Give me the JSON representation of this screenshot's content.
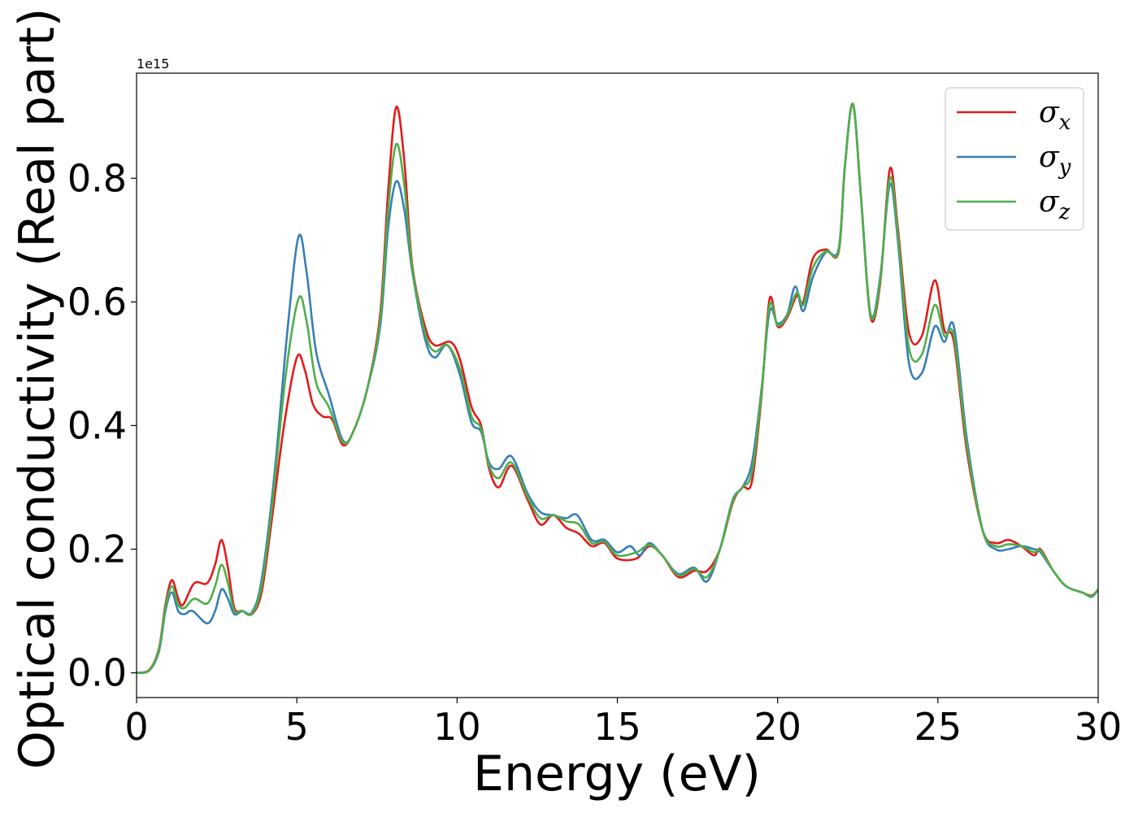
{
  "chart_data": {
    "type": "line",
    "xlabel": "Energy (eV)",
    "ylabel": "Optical conductivity (Real part)",
    "offset_text": "1e15",
    "xlim": [
      0,
      30
    ],
    "ylim": [
      -0.04,
      0.97
    ],
    "xticks": [
      0,
      5,
      10,
      15,
      20,
      25,
      30
    ],
    "xtick_labels": [
      "0",
      "5",
      "10",
      "15",
      "20",
      "25",
      "30"
    ],
    "yticks": [
      0.0,
      0.2,
      0.4,
      0.6,
      0.8
    ],
    "ytick_labels": [
      "0.0",
      "0.2",
      "0.4",
      "0.6",
      "0.8"
    ],
    "grid": false,
    "legend_position": "top-right",
    "series": [
      {
        "name": "σx",
        "symbol": "σ",
        "subscript": "x",
        "color": "#e41a1c",
        "points": [
          [
            0,
            0
          ],
          [
            0.4,
            0.005
          ],
          [
            0.7,
            0.04
          ],
          [
            0.9,
            0.11
          ],
          [
            1.1,
            0.15
          ],
          [
            1.3,
            0.12
          ],
          [
            1.45,
            0.11
          ],
          [
            1.8,
            0.145
          ],
          [
            2.2,
            0.145
          ],
          [
            2.45,
            0.175
          ],
          [
            2.65,
            0.215
          ],
          [
            2.85,
            0.17
          ],
          [
            3.05,
            0.105
          ],
          [
            3.3,
            0.1
          ],
          [
            3.6,
            0.095
          ],
          [
            3.9,
            0.13
          ],
          [
            4.2,
            0.24
          ],
          [
            4.6,
            0.4
          ],
          [
            5.0,
            0.51
          ],
          [
            5.25,
            0.49
          ],
          [
            5.5,
            0.435
          ],
          [
            5.8,
            0.415
          ],
          [
            6.1,
            0.41
          ],
          [
            6.45,
            0.368
          ],
          [
            6.8,
            0.395
          ],
          [
            7.2,
            0.46
          ],
          [
            7.6,
            0.58
          ],
          [
            7.85,
            0.78
          ],
          [
            8.1,
            0.915
          ],
          [
            8.35,
            0.83
          ],
          [
            8.6,
            0.66
          ],
          [
            9.0,
            0.56
          ],
          [
            9.3,
            0.53
          ],
          [
            9.8,
            0.535
          ],
          [
            10.1,
            0.505
          ],
          [
            10.45,
            0.43
          ],
          [
            10.75,
            0.4
          ],
          [
            11.0,
            0.33
          ],
          [
            11.3,
            0.3
          ],
          [
            11.7,
            0.335
          ],
          [
            12.2,
            0.28
          ],
          [
            12.6,
            0.24
          ],
          [
            13.0,
            0.255
          ],
          [
            13.4,
            0.235
          ],
          [
            13.8,
            0.225
          ],
          [
            14.2,
            0.205
          ],
          [
            14.6,
            0.21
          ],
          [
            15.0,
            0.185
          ],
          [
            15.6,
            0.185
          ],
          [
            16.0,
            0.205
          ],
          [
            16.4,
            0.19
          ],
          [
            16.9,
            0.155
          ],
          [
            17.4,
            0.165
          ],
          [
            17.8,
            0.165
          ],
          [
            18.2,
            0.2
          ],
          [
            18.6,
            0.275
          ],
          [
            18.9,
            0.3
          ],
          [
            19.2,
            0.31
          ],
          [
            19.5,
            0.45
          ],
          [
            19.75,
            0.605
          ],
          [
            20.0,
            0.56
          ],
          [
            20.3,
            0.575
          ],
          [
            20.6,
            0.61
          ],
          [
            20.8,
            0.6
          ],
          [
            21.1,
            0.67
          ],
          [
            21.5,
            0.685
          ],
          [
            21.9,
            0.68
          ],
          [
            22.1,
            0.82
          ],
          [
            22.35,
            0.92
          ],
          [
            22.6,
            0.77
          ],
          [
            22.9,
            0.575
          ],
          [
            23.2,
            0.63
          ],
          [
            23.5,
            0.815
          ],
          [
            23.75,
            0.72
          ],
          [
            24.1,
            0.55
          ],
          [
            24.5,
            0.545
          ],
          [
            24.9,
            0.635
          ],
          [
            25.2,
            0.555
          ],
          [
            25.5,
            0.535
          ],
          [
            25.9,
            0.36
          ],
          [
            26.4,
            0.23
          ],
          [
            26.8,
            0.21
          ],
          [
            27.2,
            0.215
          ],
          [
            27.6,
            0.205
          ],
          [
            28.0,
            0.19
          ],
          [
            28.2,
            0.2
          ],
          [
            28.6,
            0.165
          ],
          [
            29.0,
            0.14
          ],
          [
            29.5,
            0.13
          ],
          [
            29.8,
            0.125
          ],
          [
            30,
            0.135
          ]
        ]
      },
      {
        "name": "σy",
        "symbol": "σ",
        "subscript": "y",
        "color": "#377eb8",
        "points": [
          [
            0,
            0
          ],
          [
            0.4,
            0.004
          ],
          [
            0.7,
            0.035
          ],
          [
            0.9,
            0.1
          ],
          [
            1.1,
            0.13
          ],
          [
            1.3,
            0.1
          ],
          [
            1.5,
            0.095
          ],
          [
            1.75,
            0.1
          ],
          [
            2.2,
            0.08
          ],
          [
            2.45,
            0.1
          ],
          [
            2.65,
            0.135
          ],
          [
            2.85,
            0.12
          ],
          [
            3.05,
            0.095
          ],
          [
            3.3,
            0.1
          ],
          [
            3.6,
            0.098
          ],
          [
            3.9,
            0.15
          ],
          [
            4.3,
            0.32
          ],
          [
            4.7,
            0.55
          ],
          [
            5.05,
            0.705
          ],
          [
            5.3,
            0.65
          ],
          [
            5.6,
            0.52
          ],
          [
            6.0,
            0.45
          ],
          [
            6.45,
            0.375
          ],
          [
            6.8,
            0.395
          ],
          [
            7.2,
            0.46
          ],
          [
            7.6,
            0.56
          ],
          [
            7.85,
            0.72
          ],
          [
            8.1,
            0.795
          ],
          [
            8.35,
            0.75
          ],
          [
            8.6,
            0.65
          ],
          [
            9.0,
            0.54
          ],
          [
            9.3,
            0.51
          ],
          [
            9.7,
            0.53
          ],
          [
            10.1,
            0.48
          ],
          [
            10.45,
            0.405
          ],
          [
            10.75,
            0.39
          ],
          [
            11.0,
            0.34
          ],
          [
            11.3,
            0.33
          ],
          [
            11.7,
            0.35
          ],
          [
            12.2,
            0.29
          ],
          [
            12.6,
            0.26
          ],
          [
            13.0,
            0.255
          ],
          [
            13.4,
            0.25
          ],
          [
            13.75,
            0.255
          ],
          [
            14.2,
            0.215
          ],
          [
            14.6,
            0.215
          ],
          [
            15.0,
            0.195
          ],
          [
            15.4,
            0.205
          ],
          [
            15.7,
            0.19
          ],
          [
            16.0,
            0.21
          ],
          [
            16.4,
            0.19
          ],
          [
            16.9,
            0.16
          ],
          [
            17.4,
            0.17
          ],
          [
            17.8,
            0.148
          ],
          [
            18.2,
            0.2
          ],
          [
            18.6,
            0.28
          ],
          [
            18.9,
            0.3
          ],
          [
            19.2,
            0.34
          ],
          [
            19.5,
            0.46
          ],
          [
            19.75,
            0.585
          ],
          [
            20.0,
            0.565
          ],
          [
            20.3,
            0.58
          ],
          [
            20.55,
            0.625
          ],
          [
            20.8,
            0.585
          ],
          [
            21.1,
            0.64
          ],
          [
            21.5,
            0.68
          ],
          [
            21.9,
            0.685
          ],
          [
            22.1,
            0.82
          ],
          [
            22.35,
            0.92
          ],
          [
            22.6,
            0.77
          ],
          [
            22.9,
            0.58
          ],
          [
            23.2,
            0.64
          ],
          [
            23.5,
            0.79
          ],
          [
            23.75,
            0.7
          ],
          [
            24.1,
            0.5
          ],
          [
            24.5,
            0.485
          ],
          [
            24.9,
            0.56
          ],
          [
            25.2,
            0.535
          ],
          [
            25.5,
            0.56
          ],
          [
            25.9,
            0.38
          ],
          [
            26.4,
            0.23
          ],
          [
            26.8,
            0.2
          ],
          [
            27.2,
            0.2
          ],
          [
            27.6,
            0.205
          ],
          [
            28.0,
            0.2
          ],
          [
            28.2,
            0.195
          ],
          [
            28.6,
            0.165
          ],
          [
            29.0,
            0.14
          ],
          [
            29.5,
            0.13
          ],
          [
            29.8,
            0.123
          ],
          [
            30,
            0.135
          ]
        ]
      },
      {
        "name": "σz",
        "symbol": "σ",
        "subscript": "z",
        "color": "#4daf4a",
        "points": [
          [
            0,
            0
          ],
          [
            0.4,
            0.004
          ],
          [
            0.7,
            0.038
          ],
          [
            0.9,
            0.105
          ],
          [
            1.1,
            0.14
          ],
          [
            1.3,
            0.11
          ],
          [
            1.5,
            0.105
          ],
          [
            1.8,
            0.12
          ],
          [
            2.2,
            0.112
          ],
          [
            2.45,
            0.14
          ],
          [
            2.65,
            0.175
          ],
          [
            2.85,
            0.145
          ],
          [
            3.05,
            0.1
          ],
          [
            3.3,
            0.1
          ],
          [
            3.6,
            0.096
          ],
          [
            3.9,
            0.14
          ],
          [
            4.25,
            0.28
          ],
          [
            4.65,
            0.48
          ],
          [
            5.05,
            0.605
          ],
          [
            5.3,
            0.57
          ],
          [
            5.6,
            0.47
          ],
          [
            6.0,
            0.43
          ],
          [
            6.45,
            0.372
          ],
          [
            6.8,
            0.395
          ],
          [
            7.2,
            0.46
          ],
          [
            7.6,
            0.57
          ],
          [
            7.85,
            0.75
          ],
          [
            8.1,
            0.855
          ],
          [
            8.35,
            0.79
          ],
          [
            8.6,
            0.655
          ],
          [
            9.0,
            0.55
          ],
          [
            9.3,
            0.52
          ],
          [
            9.7,
            0.53
          ],
          [
            10.1,
            0.49
          ],
          [
            10.45,
            0.415
          ],
          [
            10.75,
            0.395
          ],
          [
            11.0,
            0.335
          ],
          [
            11.3,
            0.315
          ],
          [
            11.7,
            0.34
          ],
          [
            12.2,
            0.285
          ],
          [
            12.6,
            0.25
          ],
          [
            13.0,
            0.255
          ],
          [
            13.4,
            0.245
          ],
          [
            13.8,
            0.24
          ],
          [
            14.2,
            0.21
          ],
          [
            14.6,
            0.212
          ],
          [
            15.0,
            0.19
          ],
          [
            15.6,
            0.195
          ],
          [
            16.0,
            0.207
          ],
          [
            16.4,
            0.19
          ],
          [
            16.9,
            0.158
          ],
          [
            17.4,
            0.168
          ],
          [
            17.8,
            0.155
          ],
          [
            18.2,
            0.2
          ],
          [
            18.6,
            0.278
          ],
          [
            18.9,
            0.3
          ],
          [
            19.2,
            0.325
          ],
          [
            19.5,
            0.455
          ],
          [
            19.75,
            0.595
          ],
          [
            20.0,
            0.562
          ],
          [
            20.3,
            0.578
          ],
          [
            20.6,
            0.615
          ],
          [
            20.8,
            0.595
          ],
          [
            21.1,
            0.655
          ],
          [
            21.5,
            0.682
          ],
          [
            21.9,
            0.682
          ],
          [
            22.1,
            0.82
          ],
          [
            22.35,
            0.92
          ],
          [
            22.6,
            0.77
          ],
          [
            22.9,
            0.578
          ],
          [
            23.2,
            0.635
          ],
          [
            23.5,
            0.8
          ],
          [
            23.75,
            0.71
          ],
          [
            24.1,
            0.525
          ],
          [
            24.5,
            0.515
          ],
          [
            24.9,
            0.595
          ],
          [
            25.2,
            0.545
          ],
          [
            25.5,
            0.545
          ],
          [
            25.9,
            0.37
          ],
          [
            26.4,
            0.23
          ],
          [
            26.8,
            0.205
          ],
          [
            27.2,
            0.208
          ],
          [
            27.6,
            0.205
          ],
          [
            28.0,
            0.195
          ],
          [
            28.2,
            0.198
          ],
          [
            28.6,
            0.165
          ],
          [
            29.0,
            0.14
          ],
          [
            29.5,
            0.13
          ],
          [
            29.8,
            0.124
          ],
          [
            30,
            0.135
          ]
        ]
      }
    ]
  }
}
